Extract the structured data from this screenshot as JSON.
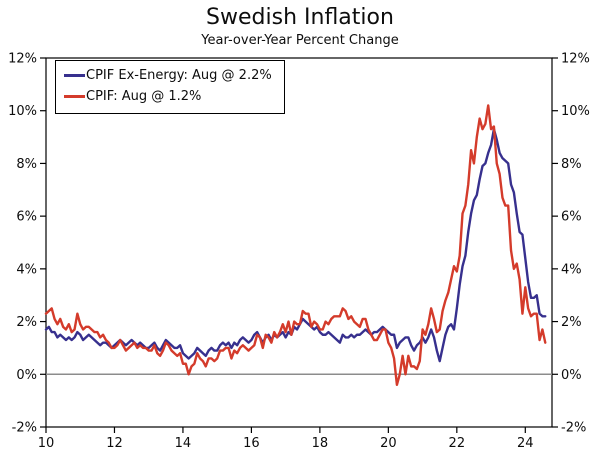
{
  "title": "Swedish Inflation",
  "subtitle": "Year-over-Year Percent Change",
  "colors": {
    "cpif_ex_energy": "#37308e",
    "cpif": "#d43b2b",
    "zero_line": "#8c8c8c",
    "axis": "#000000",
    "background": "#ffffff"
  },
  "legend": {
    "items": [
      {
        "key": "cpif_ex_energy",
        "label": "CPIF Ex-Energy: Aug @ 2.2%"
      },
      {
        "key": "cpif",
        "label": "CPIF: Aug @ 1.2%"
      }
    ]
  },
  "chart_data": {
    "type": "line",
    "title": "Swedish Inflation",
    "subtitle": "Year-over-Year Percent Change",
    "x_unit": "monthly data, Jan 2010 - Aug 2024, x labeled by 2-digit year",
    "xlim": [
      2010,
      2024.78
    ],
    "ylim": [
      -2,
      12
    ],
    "grid": "off",
    "zero_line": true,
    "legend_position": "top-left",
    "x_ticks": [
      {
        "value": 2010,
        "label": "10"
      },
      {
        "value": 2012,
        "label": "12"
      },
      {
        "value": 2014,
        "label": "14"
      },
      {
        "value": 2016,
        "label": "16"
      },
      {
        "value": 2018,
        "label": "18"
      },
      {
        "value": 2020,
        "label": "20"
      },
      {
        "value": 2022,
        "label": "22"
      },
      {
        "value": 2024,
        "label": "24"
      }
    ],
    "y_ticks": [
      {
        "value": -2,
        "label": "-2%"
      },
      {
        "value": 0,
        "label": "0%"
      },
      {
        "value": 2,
        "label": "2%"
      },
      {
        "value": 4,
        "label": "4%"
      },
      {
        "value": 6,
        "label": "6%"
      },
      {
        "value": 8,
        "label": "8%"
      },
      {
        "value": 10,
        "label": "10%"
      },
      {
        "value": 12,
        "label": "12%"
      }
    ],
    "series": [
      {
        "name": "CPIF Ex-Energy",
        "color_key": "cpif_ex_energy",
        "x_start": 2010.0,
        "x_step": 0.0833333,
        "values": [
          1.7,
          1.8,
          1.6,
          1.6,
          1.4,
          1.5,
          1.4,
          1.3,
          1.4,
          1.3,
          1.4,
          1.6,
          1.5,
          1.3,
          1.4,
          1.5,
          1.4,
          1.3,
          1.2,
          1.1,
          1.2,
          1.2,
          1.1,
          1.0,
          1.1,
          1.2,
          1.3,
          1.2,
          1.1,
          1.2,
          1.3,
          1.2,
          1.1,
          1.2,
          1.1,
          1.0,
          1.0,
          1.1,
          1.2,
          1.0,
          0.9,
          1.1,
          1.3,
          1.2,
          1.1,
          1.0,
          1.0,
          1.1,
          0.8,
          0.7,
          0.6,
          0.7,
          0.8,
          1.0,
          0.9,
          0.8,
          0.7,
          0.9,
          1.0,
          0.9,
          0.9,
          1.1,
          1.2,
          1.1,
          1.2,
          1.0,
          1.2,
          1.1,
          1.3,
          1.4,
          1.3,
          1.2,
          1.3,
          1.5,
          1.6,
          1.4,
          1.2,
          1.4,
          1.5,
          1.3,
          1.5,
          1.4,
          1.5,
          1.6,
          1.4,
          1.6,
          1.5,
          1.8,
          1.7,
          1.9,
          2.1,
          2.0,
          1.9,
          1.8,
          1.7,
          1.8,
          1.6,
          1.5,
          1.5,
          1.6,
          1.5,
          1.4,
          1.3,
          1.2,
          1.5,
          1.4,
          1.4,
          1.5,
          1.4,
          1.5,
          1.5,
          1.6,
          1.7,
          1.6,
          1.5,
          1.6,
          1.6,
          1.7,
          1.8,
          1.7,
          1.6,
          1.5,
          1.5,
          1.0,
          1.2,
          1.3,
          1.4,
          1.4,
          1.1,
          0.9,
          1.1,
          1.2,
          1.4,
          1.2,
          1.4,
          1.7,
          1.4,
          0.9,
          0.5,
          1.0,
          1.5,
          1.8,
          1.9,
          1.7,
          2.5,
          3.4,
          4.1,
          4.5,
          5.4,
          6.1,
          6.6,
          6.8,
          7.4,
          7.9,
          8.0,
          8.4,
          8.7,
          9.3,
          8.9,
          8.4,
          8.2,
          8.1,
          8.0,
          7.2,
          6.9,
          6.1,
          5.4,
          5.3,
          4.4,
          3.5,
          2.9,
          2.9,
          3.0,
          2.3,
          2.2,
          2.2
        ]
      },
      {
        "name": "CPIF",
        "color_key": "cpif",
        "x_start": 2010.0,
        "x_step": 0.0833333,
        "values": [
          2.3,
          2.4,
          2.5,
          2.1,
          1.9,
          2.1,
          1.8,
          1.7,
          1.9,
          1.6,
          1.7,
          2.3,
          1.9,
          1.7,
          1.8,
          1.8,
          1.7,
          1.6,
          1.6,
          1.4,
          1.5,
          1.3,
          1.2,
          1.0,
          1.0,
          1.1,
          1.3,
          1.1,
          0.9,
          1.0,
          1.1,
          1.2,
          1.0,
          1.1,
          1.0,
          1.0,
          0.9,
          0.9,
          1.1,
          0.8,
          0.7,
          0.9,
          1.2,
          1.1,
          0.9,
          0.8,
          0.7,
          0.8,
          0.4,
          0.4,
          0.0,
          0.3,
          0.4,
          0.8,
          0.6,
          0.5,
          0.3,
          0.6,
          0.6,
          0.5,
          0.6,
          0.9,
          0.9,
          1.0,
          1.0,
          0.6,
          0.9,
          0.8,
          1.0,
          1.1,
          1.0,
          0.9,
          1.0,
          1.1,
          1.5,
          1.4,
          1.0,
          1.5,
          1.4,
          1.2,
          1.6,
          1.4,
          1.6,
          1.9,
          1.6,
          2.0,
          1.5,
          2.0,
          1.9,
          1.9,
          2.4,
          2.3,
          2.3,
          1.8,
          2.0,
          1.9,
          1.7,
          1.7,
          2.0,
          1.9,
          2.1,
          2.2,
          2.2,
          2.2,
          2.5,
          2.4,
          2.1,
          2.2,
          2.0,
          1.9,
          1.8,
          2.1,
          2.1,
          1.7,
          1.5,
          1.3,
          1.3,
          1.5,
          1.7,
          1.7,
          1.2,
          1.0,
          0.6,
          -0.4,
          0.0,
          0.7,
          0.0,
          0.7,
          0.3,
          0.3,
          0.2,
          0.5,
          1.7,
          1.5,
          1.9,
          2.5,
          2.1,
          1.6,
          1.7,
          2.4,
          2.8,
          3.1,
          3.6,
          4.1,
          3.9,
          4.5,
          6.1,
          6.4,
          7.2,
          8.5,
          8.0,
          9.0,
          9.7,
          9.3,
          9.5,
          10.2,
          9.3,
          9.4,
          8.0,
          7.6,
          6.7,
          6.4,
          6.4,
          4.7,
          4.0,
          4.2,
          3.6,
          2.3,
          3.3,
          2.5,
          2.2,
          2.3,
          2.3,
          1.3,
          1.7,
          1.2
        ]
      }
    ]
  }
}
